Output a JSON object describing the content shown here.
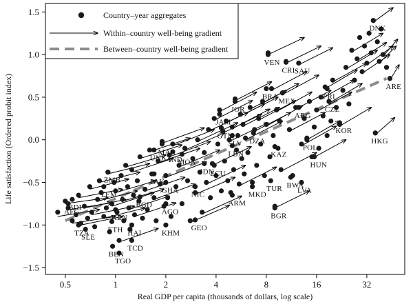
{
  "chart_data": {
    "type": "scatter",
    "title": "",
    "xlabel": "Real GDP per capita (thousands of dollars, log scale)",
    "ylabel": "Life satisfaction (Ordered probit index)",
    "x_scale": "log2",
    "xlim": [
      0.38,
      54
    ],
    "ylim": [
      -1.58,
      1.6
    ],
    "x_ticks": [
      0.5,
      1,
      2,
      4,
      8,
      16,
      32
    ],
    "x_tick_labels": [
      "0.5",
      "1",
      "2",
      "4",
      "8",
      "16",
      "32"
    ],
    "y_ticks": [
      -1.5,
      -1.0,
      -0.5,
      0.0,
      0.5,
      1.0,
      1.5
    ],
    "y_tick_labels": [
      "−1.5",
      "−1.0",
      "−0.5",
      "0.0",
      "0.5",
      "1.0",
      "1.5"
    ],
    "grid": false,
    "legend_position": "top-left",
    "colors": {
      "points": "#1a1a1a",
      "arrows": "#000000",
      "between_line": "#8c8c8c",
      "axes": "#000000"
    },
    "legend": [
      {
        "label": "Country–year aggregates",
        "marker": "dot"
      },
      {
        "label": "Within–country well-being gradient",
        "marker": "arrow"
      },
      {
        "label": "Between–country well-being gradient",
        "marker": "dashed-line"
      }
    ],
    "between_line": {
      "x": [
        0.5,
        42
      ],
      "y": [
        -0.95,
        0.72
      ]
    },
    "countries": [
      {
        "label": "DNK",
        "x": 35,
        "y": 1.4
      },
      {
        "label": "VEN",
        "x": 8.2,
        "y": 1.0
      },
      {
        "label": "CRI",
        "x": 10.5,
        "y": 0.91
      },
      {
        "label": "SAU",
        "x": 12.5,
        "y": 0.9
      },
      {
        "label": "BRA",
        "x": 8.0,
        "y": 0.6
      },
      {
        "label": "MEX",
        "x": 10.0,
        "y": 0.55
      },
      {
        "label": "ARG",
        "x": 12.5,
        "y": 0.38
      },
      {
        "label": "PRI",
        "x": 18.5,
        "y": 0.6
      },
      {
        "label": "ARE",
        "x": 44,
        "y": 0.72
      },
      {
        "label": "CZE",
        "x": 19,
        "y": 0.45
      },
      {
        "label": "JAM",
        "x": 4.2,
        "y": 0.3
      },
      {
        "label": "JOR",
        "x": 5.2,
        "y": 0.45
      },
      {
        "label": "GTM",
        "x": 4.3,
        "y": 0.14
      },
      {
        "label": "SLV",
        "x": 5.0,
        "y": 0.05
      },
      {
        "label": "DZA",
        "x": 6.7,
        "y": 0.08
      },
      {
        "label": "LBN",
        "x": 5.0,
        "y": -0.07
      },
      {
        "label": "POL",
        "x": 14.0,
        "y": 0.0
      },
      {
        "label": "HKG",
        "x": 36,
        "y": 0.08
      },
      {
        "label": "KOR",
        "x": 22,
        "y": 0.2
      },
      {
        "label": "HUN",
        "x": 15.5,
        "y": -0.2
      },
      {
        "label": "UNK",
        "x": 1.7,
        "y": -0.12
      },
      {
        "label": "MAR",
        "x": 1.9,
        "y": -0.05
      },
      {
        "label": "IND",
        "x": 2.2,
        "y": -0.14
      },
      {
        "label": "MOA",
        "x": 2.5,
        "y": -0.17
      },
      {
        "label": "IDN",
        "x": 3.4,
        "y": -0.28
      },
      {
        "label": "ECU",
        "x": 3.9,
        "y": -0.3
      },
      {
        "label": "ZMB",
        "x": 0.9,
        "y": -0.38
      },
      {
        "label": "YEM",
        "x": 0.85,
        "y": -0.55
      },
      {
        "label": "GHA",
        "x": 2.0,
        "y": -0.5
      },
      {
        "label": "NIC",
        "x": 3.0,
        "y": -0.55
      },
      {
        "label": "BGD",
        "x": 1.4,
        "y": -0.67
      },
      {
        "label": "AGO",
        "x": 2.0,
        "y": -0.75
      },
      {
        "label": "ARM",
        "x": 5.0,
        "y": -0.65
      },
      {
        "label": "MKD",
        "x": 6.6,
        "y": -0.55
      },
      {
        "label": "TUR",
        "x": 8.5,
        "y": -0.48
      },
      {
        "label": "BWA",
        "x": 11.2,
        "y": -0.44
      },
      {
        "label": "LVA",
        "x": 13.0,
        "y": -0.5
      },
      {
        "label": "GEO",
        "x": 3.0,
        "y": -0.94
      },
      {
        "label": "KHM",
        "x": 2.0,
        "y": -1.0
      },
      {
        "label": "BGR",
        "x": 9.0,
        "y": -0.8
      },
      {
        "label": "AFG",
        "x": 0.52,
        "y": -0.75
      },
      {
        "label": "BDI",
        "x": 0.55,
        "y": -0.7
      },
      {
        "label": "TZA",
        "x": 0.6,
        "y": -1.0
      },
      {
        "label": "SLE",
        "x": 0.66,
        "y": -1.05
      },
      {
        "label": "KEN",
        "x": 1.0,
        "y": -0.82
      },
      {
        "label": "ETH",
        "x": 0.95,
        "y": -0.96
      },
      {
        "label": "HAI",
        "x": 1.25,
        "y": -1.0
      },
      {
        "label": "BEN",
        "x": 0.96,
        "y": -1.25
      },
      {
        "label": "TCD",
        "x": 1.25,
        "y": -1.18
      },
      {
        "label": "TGO",
        "x": 1.05,
        "y": -1.33
      },
      {
        "label": "PAK",
        "x": 1.7,
        "y": -0.4
      },
      {
        "label": "KAZ",
        "x": 9.0,
        "y": -0.08
      }
    ],
    "points": [
      [
        0.45,
        -0.85
      ],
      [
        0.5,
        -0.72
      ],
      [
        0.52,
        -0.8
      ],
      [
        0.55,
        -0.95
      ],
      [
        0.58,
        -0.88
      ],
      [
        0.6,
        -0.65
      ],
      [
        0.62,
        -0.98
      ],
      [
        0.65,
        -0.78
      ],
      [
        0.68,
        -0.92
      ],
      [
        0.7,
        -0.55
      ],
      [
        0.72,
        -0.85
      ],
      [
        0.75,
        -1.02
      ],
      [
        0.78,
        -0.7
      ],
      [
        0.8,
        -0.48
      ],
      [
        0.82,
        -0.62
      ],
      [
        0.85,
        -0.9
      ],
      [
        0.88,
        -0.8
      ],
      [
        0.9,
        -0.38
      ],
      [
        0.92,
        -1.08
      ],
      [
        0.95,
        -0.75
      ],
      [
        0.98,
        -0.5
      ],
      [
        1.0,
        -0.6
      ],
      [
        1.02,
        -0.85
      ],
      [
        1.05,
        -1.18
      ],
      [
        1.08,
        -0.42
      ],
      [
        1.1,
        -0.7
      ],
      [
        1.12,
        -0.95
      ],
      [
        1.15,
        -0.3
      ],
      [
        1.18,
        -0.55
      ],
      [
        1.2,
        -0.8
      ],
      [
        1.22,
        -1.05
      ],
      [
        1.25,
        -0.35
      ],
      [
        1.28,
        -0.65
      ],
      [
        1.3,
        -0.88
      ],
      [
        1.35,
        -0.48
      ],
      [
        1.38,
        -0.72
      ],
      [
        1.4,
        -0.2
      ],
      [
        1.45,
        -0.92
      ],
      [
        1.5,
        -0.58
      ],
      [
        1.55,
        -0.82
      ],
      [
        1.6,
        -0.12
      ],
      [
        1.65,
        -0.4
      ],
      [
        1.7,
        -0.68
      ],
      [
        1.75,
        -0.95
      ],
      [
        1.8,
        -0.25
      ],
      [
        1.85,
        -0.52
      ],
      [
        1.9,
        -0.02
      ],
      [
        1.95,
        -0.78
      ],
      [
        2.0,
        -0.42
      ],
      [
        2.05,
        -0.68
      ],
      [
        2.1,
        -0.18
      ],
      [
        2.15,
        -0.9
      ],
      [
        2.2,
        -0.05
      ],
      [
        2.3,
        -0.55
      ],
      [
        2.4,
        -0.3
      ],
      [
        2.5,
        -0.75
      ],
      [
        2.6,
        -0.1
      ],
      [
        2.7,
        -0.48
      ],
      [
        2.8,
        -0.95
      ],
      [
        2.9,
        -0.22
      ],
      [
        3.0,
        -0.62
      ],
      [
        3.1,
        0.0
      ],
      [
        3.2,
        -0.38
      ],
      [
        3.3,
        -0.85
      ],
      [
        3.4,
        -0.15
      ],
      [
        3.5,
        -0.5
      ],
      [
        3.6,
        0.12
      ],
      [
        3.7,
        -0.68
      ],
      [
        3.8,
        -0.28
      ],
      [
        3.9,
        0.25
      ],
      [
        4.0,
        -0.42
      ],
      [
        4.1,
        -0.05
      ],
      [
        4.2,
        0.35
      ],
      [
        4.3,
        -0.6
      ],
      [
        4.4,
        0.1
      ],
      [
        4.5,
        -0.25
      ],
      [
        4.6,
        0.22
      ],
      [
        4.7,
        -0.48
      ],
      [
        4.8,
        0.0
      ],
      [
        4.9,
        -0.62
      ],
      [
        5.0,
        0.15
      ],
      [
        5.1,
        -0.35
      ],
      [
        5.2,
        0.48
      ],
      [
        5.3,
        -0.12
      ],
      [
        5.4,
        0.05
      ],
      [
        5.5,
        -0.52
      ],
      [
        5.6,
        0.3
      ],
      [
        5.7,
        -0.22
      ],
      [
        5.8,
        0.18
      ],
      [
        5.9,
        -0.4
      ],
      [
        6.0,
        0.02
      ],
      [
        6.2,
        -0.15
      ],
      [
        6.4,
        0.38
      ],
      [
        6.6,
        -0.5
      ],
      [
        6.8,
        0.12
      ],
      [
        7.0,
        -0.3
      ],
      [
        7.2,
        0.25
      ],
      [
        7.4,
        -0.05
      ],
      [
        7.6,
        0.45
      ],
      [
        7.8,
        -0.42
      ],
      [
        8.0,
        0.18
      ],
      [
        8.2,
        1.02
      ],
      [
        8.4,
        -0.2
      ],
      [
        8.6,
        0.6
      ],
      [
        8.8,
        0.05
      ],
      [
        9.0,
        -0.78
      ],
      [
        9.2,
        0.35
      ],
      [
        9.4,
        -0.1
      ],
      [
        9.6,
        0.22
      ],
      [
        9.8,
        -0.35
      ],
      [
        10.0,
        0.55
      ],
      [
        10.5,
        0.92
      ],
      [
        11.0,
        0.12
      ],
      [
        11.5,
        -0.42
      ],
      [
        12.0,
        0.38
      ],
      [
        12.5,
        0.9
      ],
      [
        13.0,
        -0.05
      ],
      [
        13.5,
        0.25
      ],
      [
        14.0,
        0.02
      ],
      [
        14.5,
        0.45
      ],
      [
        15.0,
        -0.2
      ],
      [
        15.5,
        0.15
      ],
      [
        16.0,
        0.35
      ],
      [
        16.5,
        -0.1
      ],
      [
        17.0,
        0.5
      ],
      [
        17.5,
        0.28
      ],
      [
        18.0,
        0.62
      ],
      [
        18.5,
        0.05
      ],
      [
        19.0,
        0.45
      ],
      [
        19.5,
        0.22
      ],
      [
        20.0,
        0.7
      ],
      [
        21.0,
        0.38
      ],
      [
        22.0,
        0.18
      ],
      [
        23.0,
        0.58
      ],
      [
        24.0,
        0.85
      ],
      [
        25.0,
        0.42
      ],
      [
        26.0,
        1.05
      ],
      [
        27.0,
        0.7
      ],
      [
        28.0,
        0.95
      ],
      [
        29.0,
        1.2
      ],
      [
        30.0,
        0.8
      ],
      [
        31.0,
        1.1
      ],
      [
        32.0,
        0.9
      ],
      [
        33.0,
        1.25
      ],
      [
        34.0,
        1.02
      ],
      [
        35.0,
        1.4
      ],
      [
        36.0,
        0.08
      ],
      [
        37.0,
        1.15
      ],
      [
        38.0,
        0.92
      ],
      [
        39.0,
        1.3
      ],
      [
        40.0,
        1.0
      ],
      [
        42.0,
        0.85
      ],
      [
        44.0,
        0.72
      ]
    ],
    "arrows": [
      [
        0.45,
        -0.9,
        0.8,
        -0.82
      ],
      [
        0.5,
        -0.75,
        0.9,
        -0.68
      ],
      [
        0.52,
        -0.82,
        0.95,
        -0.74
      ],
      [
        0.55,
        -0.98,
        1.0,
        -0.9
      ],
      [
        0.6,
        -0.68,
        1.1,
        -0.58
      ],
      [
        0.62,
        -1.0,
        1.1,
        -0.9
      ],
      [
        0.65,
        -0.8,
        1.15,
        -0.7
      ],
      [
        0.7,
        -0.58,
        1.2,
        -0.46
      ],
      [
        0.72,
        -0.88,
        1.3,
        -0.78
      ],
      [
        0.78,
        -0.72,
        1.35,
        -0.6
      ],
      [
        0.8,
        -0.5,
        1.4,
        -0.38
      ],
      [
        0.85,
        -0.92,
        1.5,
        -0.8
      ],
      [
        0.9,
        -0.4,
        1.6,
        -0.28
      ],
      [
        0.95,
        -0.78,
        1.7,
        -0.62
      ],
      [
        1.0,
        -0.62,
        1.75,
        -0.48
      ],
      [
        1.05,
        -1.2,
        1.8,
        -1.04
      ],
      [
        1.1,
        -0.72,
        1.95,
        -0.58
      ],
      [
        1.15,
        -0.32,
        2.0,
        -0.18
      ],
      [
        1.2,
        -0.82,
        2.1,
        -0.66
      ],
      [
        1.25,
        -0.38,
        2.2,
        -0.22
      ],
      [
        1.3,
        -0.9,
        2.3,
        -0.74
      ],
      [
        1.4,
        -0.22,
        2.5,
        -0.06
      ],
      [
        1.5,
        -0.6,
        2.6,
        -0.44
      ],
      [
        1.6,
        -0.14,
        2.8,
        0.02
      ],
      [
        1.7,
        -0.7,
        3.0,
        -0.52
      ],
      [
        1.8,
        -0.27,
        3.2,
        -0.1
      ],
      [
        1.9,
        -0.04,
        3.4,
        0.14
      ],
      [
        2.0,
        -0.44,
        3.5,
        -0.26
      ],
      [
        2.1,
        -0.2,
        3.7,
        -0.02
      ],
      [
        2.2,
        -0.07,
        3.9,
        0.12
      ],
      [
        2.4,
        -0.32,
        4.2,
        -0.12
      ],
      [
        2.6,
        -0.12,
        4.5,
        0.08
      ],
      [
        2.8,
        -0.97,
        4.8,
        -0.77
      ],
      [
        3.0,
        -0.64,
        5.2,
        -0.44
      ],
      [
        3.1,
        -0.02,
        5.4,
        0.2
      ],
      [
        3.3,
        -0.87,
        5.7,
        -0.66
      ],
      [
        3.5,
        -0.52,
        6.0,
        -0.3
      ],
      [
        3.6,
        0.1,
        6.2,
        0.32
      ],
      [
        3.8,
        -0.3,
        6.5,
        -0.08
      ],
      [
        3.9,
        0.23,
        6.6,
        0.46
      ],
      [
        4.2,
        0.33,
        7.0,
        0.56
      ],
      [
        4.4,
        0.08,
        7.5,
        0.3
      ],
      [
        4.6,
        0.2,
        7.8,
        0.42
      ],
      [
        4.8,
        -0.02,
        8.2,
        0.2
      ],
      [
        5.0,
        0.13,
        8.4,
        0.36
      ],
      [
        5.2,
        0.46,
        8.6,
        0.68
      ],
      [
        5.5,
        -0.54,
        9.2,
        -0.32
      ],
      [
        5.6,
        0.28,
        9.4,
        0.5
      ],
      [
        5.8,
        0.16,
        9.6,
        0.38
      ],
      [
        6.0,
        0.0,
        10.0,
        0.22
      ],
      [
        6.4,
        0.36,
        10.6,
        0.58
      ],
      [
        6.8,
        0.1,
        11.2,
        0.32
      ],
      [
        7.2,
        0.23,
        12.0,
        0.46
      ],
      [
        7.6,
        0.43,
        12.5,
        0.66
      ],
      [
        8.0,
        0.16,
        13.2,
        0.4
      ],
      [
        8.2,
        1.0,
        13.5,
        1.2
      ],
      [
        8.6,
        0.58,
        14.0,
        0.8
      ],
      [
        9.0,
        -0.8,
        14.5,
        -0.6
      ],
      [
        9.2,
        0.33,
        15.0,
        0.56
      ],
      [
        9.8,
        -0.37,
        16.0,
        -0.15
      ],
      [
        10.0,
        0.53,
        16.5,
        0.76
      ],
      [
        10.5,
        0.9,
        17.0,
        1.1
      ],
      [
        11.0,
        0.1,
        18.0,
        0.32
      ],
      [
        12.0,
        0.36,
        19.5,
        0.58
      ],
      [
        12.5,
        0.88,
        20.0,
        1.08
      ],
      [
        13.0,
        -0.07,
        21.0,
        0.16
      ],
      [
        14.0,
        0.0,
        22.0,
        0.22
      ],
      [
        15.0,
        -0.22,
        24.0,
        0.0
      ],
      [
        16.0,
        0.33,
        26.0,
        0.56
      ],
      [
        17.0,
        0.48,
        27.0,
        0.7
      ],
      [
        18.0,
        0.6,
        28.0,
        0.82
      ],
      [
        19.0,
        0.43,
        30.0,
        0.66
      ],
      [
        20.0,
        0.68,
        32.0,
        0.9
      ],
      [
        22.0,
        0.16,
        34.0,
        0.38
      ],
      [
        24.0,
        0.83,
        37.0,
        1.05
      ],
      [
        26.0,
        1.03,
        40.0,
        1.25
      ],
      [
        28.0,
        0.93,
        42.0,
        1.14
      ],
      [
        30.0,
        0.78,
        44.0,
        1.0
      ],
      [
        32.0,
        0.88,
        46.0,
        1.1
      ],
      [
        35.0,
        1.38,
        46.0,
        1.55
      ],
      [
        36.0,
        0.06,
        47.0,
        0.26
      ],
      [
        38.0,
        0.9,
        48.0,
        1.1
      ],
      [
        40.0,
        0.98,
        49.0,
        1.18
      ],
      [
        44.0,
        0.7,
        50.0,
        0.88
      ]
    ]
  }
}
